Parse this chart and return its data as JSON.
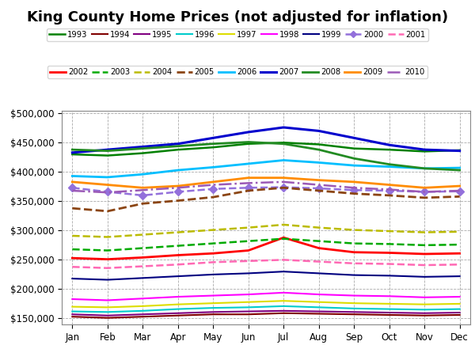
{
  "title": "King County Home Prices (not adjusted for inflation)",
  "months": [
    "Jan",
    "Feb",
    "Mar",
    "Apr",
    "May",
    "Jun",
    "Jul",
    "Aug",
    "Sep",
    "Oct",
    "Nov",
    "Dec"
  ],
  "ylim": [
    140000,
    505000
  ],
  "yticks": [
    150000,
    200000,
    250000,
    300000,
    350000,
    400000,
    450000,
    500000
  ],
  "series": {
    "1993": {
      "data": [
        430000,
        428000,
        432000,
        438000,
        442000,
        448000,
        450000,
        447000,
        440000,
        438000,
        435000,
        437000
      ],
      "color": "#008000",
      "linestyle": "-",
      "linewidth": 1.8
    },
    "1994": {
      "data": [
        153000,
        151000,
        153000,
        155000,
        157000,
        157000,
        159000,
        158000,
        157000,
        156000,
        155000,
        156000
      ],
      "color": "#800000",
      "linestyle": "-",
      "linewidth": 1.5
    },
    "1995": {
      "data": [
        157000,
        155000,
        157000,
        159000,
        161000,
        162000,
        163000,
        162000,
        161000,
        160000,
        159000,
        160000
      ],
      "color": "#800080",
      "linestyle": "-",
      "linewidth": 1.5
    },
    "1996": {
      "data": [
        162000,
        161000,
        163000,
        166000,
        168000,
        169000,
        171000,
        169000,
        167000,
        166000,
        165000,
        166000
      ],
      "color": "#00CCCC",
      "linestyle": "-",
      "linewidth": 1.5
    },
    "1997": {
      "data": [
        170000,
        169000,
        171000,
        174000,
        176000,
        178000,
        180000,
        178000,
        176000,
        175000,
        174000,
        175000
      ],
      "color": "#DDDD00",
      "linestyle": "-",
      "linewidth": 1.5
    },
    "1998": {
      "data": [
        183000,
        181000,
        184000,
        187000,
        189000,
        191000,
        194000,
        191000,
        189000,
        188000,
        186000,
        187000
      ],
      "color": "#FF00FF",
      "linestyle": "-",
      "linewidth": 1.5
    },
    "1999": {
      "data": [
        218000,
        216000,
        219000,
        222000,
        225000,
        227000,
        230000,
        227000,
        224000,
        223000,
        221000,
        222000
      ],
      "color": "#000080",
      "linestyle": "-",
      "linewidth": 1.5
    },
    "2000": {
      "data": [
        373000,
        366000,
        360000,
        366000,
        371000,
        373000,
        374000,
        372000,
        369000,
        368000,
        366000,
        367000
      ],
      "color": "#9370DB",
      "linestyle": "--",
      "linewidth": 1.8,
      "marker": "D",
      "markersize": 5
    },
    "2001": {
      "data": [
        238000,
        236000,
        239000,
        242000,
        246000,
        248000,
        250000,
        247000,
        244000,
        243000,
        241000,
        242000
      ],
      "color": "#FF69B4",
      "linestyle": "--",
      "linewidth": 1.8
    },
    "2002": {
      "data": [
        253000,
        251000,
        254000,
        258000,
        261000,
        266000,
        288000,
        270000,
        263000,
        262000,
        260000,
        261000
      ],
      "color": "#FF0000",
      "linestyle": "-",
      "linewidth": 2.0
    },
    "2003": {
      "data": [
        268000,
        266000,
        270000,
        274000,
        278000,
        282000,
        286000,
        282000,
        278000,
        277000,
        275000,
        276000
      ],
      "color": "#00AA00",
      "linestyle": "--",
      "linewidth": 1.8
    },
    "2004": {
      "data": [
        291000,
        289000,
        293000,
        297000,
        301000,
        305000,
        310000,
        305000,
        301000,
        299000,
        297000,
        298000
      ],
      "color": "#BBBB00",
      "linestyle": "--",
      "linewidth": 1.8
    },
    "2005": {
      "data": [
        338000,
        333000,
        346000,
        351000,
        357000,
        368000,
        373000,
        368000,
        363000,
        360000,
        356000,
        358000
      ],
      "color": "#8B4513",
      "linestyle": "--",
      "linewidth": 2.0
    },
    "2006": {
      "data": [
        393000,
        391000,
        396000,
        403000,
        408000,
        414000,
        420000,
        416000,
        411000,
        409000,
        406000,
        407000
      ],
      "color": "#00BFFF",
      "linestyle": "-",
      "linewidth": 2.0
    },
    "2007": {
      "data": [
        433000,
        438000,
        443000,
        448000,
        458000,
        468000,
        476000,
        470000,
        458000,
        446000,
        438000,
        436000
      ],
      "color": "#0000CD",
      "linestyle": "-",
      "linewidth": 2.2
    },
    "2008": {
      "data": [
        438000,
        436000,
        440000,
        444000,
        448000,
        451000,
        448000,
        438000,
        423000,
        413000,
        406000,
        403000
      ],
      "color": "#228B22",
      "linestyle": "-",
      "linewidth": 2.0
    },
    "2009": {
      "data": [
        383000,
        378000,
        373000,
        376000,
        383000,
        390000,
        390000,
        386000,
        383000,
        378000,
        373000,
        376000
      ],
      "color": "#FF8C00",
      "linestyle": "-",
      "linewidth": 2.0
    },
    "2010": {
      "data": [
        368000,
        365000,
        369000,
        373000,
        378000,
        381000,
        383000,
        378000,
        373000,
        370000,
        366000,
        368000
      ],
      "color": "#9B59B6",
      "linestyle": "-.",
      "linewidth": 1.8
    }
  },
  "legend_row1": [
    "1993",
    "1994",
    "1995",
    "1996",
    "1997",
    "1998",
    "1999",
    "2000",
    "2001"
  ],
  "legend_row2": [
    "2002",
    "2003",
    "2004",
    "2005",
    "2006",
    "2007",
    "2008",
    "2009",
    "2010"
  ],
  "background_color": "#FFFFFF",
  "grid_color": "#AAAAAA",
  "title_fontsize": 13
}
